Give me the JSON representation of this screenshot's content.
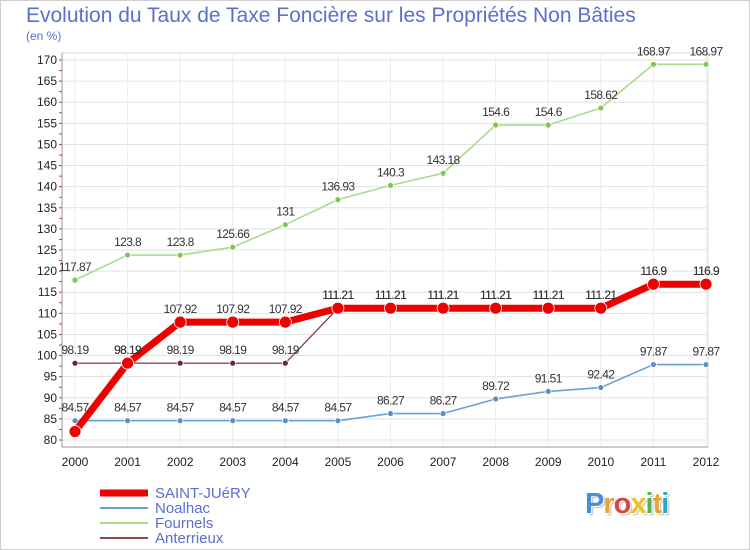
{
  "title": "Evolution du Taux de Taxe Foncière sur les Propriétés Non Bâties",
  "unit": "(en %)",
  "logo": {
    "text": "Proxiti",
    "letter_colors": [
      "#4a90d9",
      "#e8a33a",
      "#d34a4a",
      "#f0c020",
      "#5ab24a",
      "#e8a33a",
      "#2aa7c9"
    ]
  },
  "chart_data": {
    "type": "line",
    "x": [
      "2000",
      "2001",
      "2002",
      "2003",
      "2004",
      "2005",
      "2006",
      "2007",
      "2008",
      "2009",
      "2010",
      "2011",
      "2012"
    ],
    "ylim": [
      80,
      170
    ],
    "yticks": [
      80,
      85,
      90,
      95,
      100,
      105,
      110,
      115,
      120,
      125,
      130,
      135,
      140,
      145,
      150,
      155,
      160,
      165,
      170
    ],
    "grid": true,
    "legend_position": "bottom-left",
    "series": [
      {
        "name": "Noalhac",
        "color": "#6aa0d8",
        "point_color": "#5b8fc8",
        "width": 1.6,
        "r": 3,
        "values": [
          84.57,
          84.57,
          84.57,
          84.57,
          84.57,
          84.57,
          86.27,
          86.27,
          89.72,
          91.51,
          92.42,
          97.87,
          97.87
        ],
        "labels": [
          "84.57",
          "84.57",
          "84.57",
          "84.57",
          "84.57",
          "84.57",
          "86.27",
          "86.27",
          "89.72",
          "91.51",
          "92.42",
          "97.87",
          "97.87"
        ]
      },
      {
        "name": "Fournels",
        "color": "#a8dc8a",
        "point_color": "#7cc852",
        "width": 1.6,
        "r": 3,
        "values": [
          117.87,
          123.8,
          123.8,
          125.66,
          131,
          136.93,
          140.3,
          143.18,
          154.6,
          154.6,
          158.62,
          168.97,
          168.97
        ],
        "labels": [
          "117.87",
          "123.8",
          "123.8",
          "125.66",
          "131",
          "136.93",
          "140.3",
          "143.18",
          "154.6",
          "154.6",
          "158.62",
          "168.97",
          "168.97"
        ]
      },
      {
        "name": "Anterrieux",
        "color": "#8a4a4a",
        "point_color": "#6a2a2a",
        "width": 1.4,
        "r": 3,
        "values": [
          98.19,
          98.19,
          98.19,
          98.19,
          98.19,
          111.21,
          111.21,
          111.21,
          111.21,
          111.21,
          111.21,
          116.9,
          116.9
        ],
        "labels": [
          "98.19",
          "98.19",
          "98.19",
          "98.19",
          "98.19",
          "111.21",
          "111.21",
          "111.21",
          "111.21",
          "111.21",
          "111.21",
          "116.9",
          "116.9"
        ]
      },
      {
        "name": "SAINT-JUéRY",
        "color": "#ee0000",
        "point_color": "#ee0000",
        "width": 7,
        "r": 6,
        "values": [
          82,
          98.19,
          107.92,
          107.92,
          107.92,
          111.21,
          111.21,
          111.21,
          111.21,
          111.21,
          111.21,
          116.9,
          116.9
        ],
        "labels": [
          "",
          "98.19",
          "107.92",
          "107.92",
          "107.92",
          "111.21",
          "111.21",
          "111.21",
          "111.21",
          "111.21",
          "111.21",
          "116.9",
          "116.9"
        ]
      }
    ],
    "legend": [
      {
        "name": "SAINT-JUéRY",
        "color": "#ee0000",
        "width": 7
      },
      {
        "name": "Noalhac",
        "color": "#6aa0d8",
        "width": 2
      },
      {
        "name": "Fournels",
        "color": "#a8dc8a",
        "width": 2
      },
      {
        "name": "Anterrieux",
        "color": "#8a4a4a",
        "width": 2
      }
    ]
  }
}
